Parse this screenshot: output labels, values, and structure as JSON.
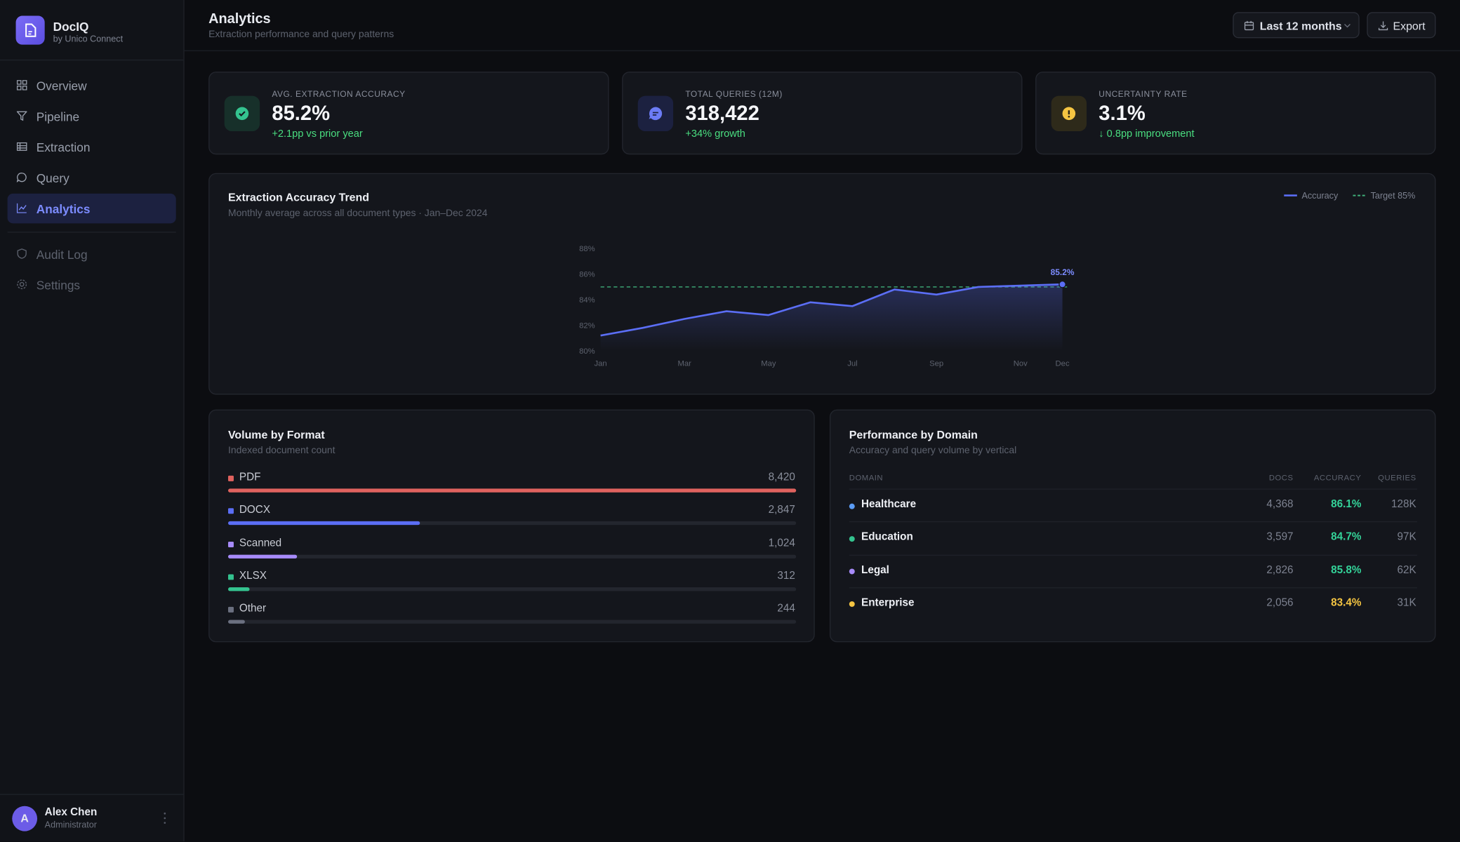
{
  "sidebar": {
    "brand": "DocIQ",
    "brand_sub": "by Unico Connect",
    "nav": [
      "Overview",
      "Pipeline",
      "Extraction",
      "Query",
      "Analytics"
    ],
    "nav_secondary": [
      "Audit Log",
      "Settings"
    ],
    "user": {
      "initial": "A",
      "name": "Alex Chen",
      "role": "Administrator"
    }
  },
  "header": {
    "title": "Analytics",
    "subtitle": "Extraction performance and query patterns",
    "range_button": "Last 12 months",
    "export_button": "Export"
  },
  "kpis": [
    {
      "label": "AVG. EXTRACTION ACCURACY",
      "value": "85.2%",
      "delta": "+2.1pp vs prior year",
      "color": "#34c38f"
    },
    {
      "label": "TOTAL QUERIES (12M)",
      "value": "318,422",
      "delta": "+34% growth",
      "color": "#6c7cf5"
    },
    {
      "label": "UNCERTAINTY RATE",
      "value": "3.1%",
      "delta": "↓ 0.8pp improvement",
      "color": "#f5c542"
    }
  ],
  "chart_data": {
    "type": "line",
    "title": "Extraction Accuracy Trend",
    "subtitle": "Monthly average across all document types · Jan–Dec 2024",
    "categories": [
      "Jan",
      null,
      "Mar",
      null,
      "May",
      null,
      "Jul",
      null,
      "Sep",
      null,
      "Nov",
      "Dec"
    ],
    "series": [
      {
        "name": "Accuracy",
        "color": "#5b6ef5",
        "values": [
          81.2,
          81.8,
          82.5,
          83.1,
          82.8,
          83.8,
          83.5,
          84.8,
          84.4,
          85.0,
          85.1,
          85.2
        ],
        "value_labels": [
          null,
          null,
          null,
          null,
          null,
          null,
          null,
          null,
          null,
          null,
          null,
          "85.2%"
        ]
      }
    ],
    "target": {
      "name": "Target 85%",
      "value": 85,
      "color": "#3fae7a"
    },
    "ylim": [
      80,
      88
    ],
    "yticks": [
      {
        "value": 80,
        "label": "80%"
      },
      {
        "value": 82,
        "label": "82%"
      },
      {
        "value": 84,
        "label": "84%"
      },
      {
        "value": 86,
        "label": "86%"
      },
      {
        "value": 88,
        "label": "88%"
      }
    ],
    "grid": false
  },
  "volume": {
    "title": "Volume by Format",
    "subtitle": "Indexed document count",
    "items": [
      {
        "name": "PDF",
        "color": "#e0625e",
        "value": 8420,
        "label": "8,420"
      },
      {
        "name": "DOCX",
        "color": "#5b6ef5",
        "value": 2847,
        "label": "2,847"
      },
      {
        "name": "Scanned",
        "color": "#a78bfa",
        "value": 1024,
        "label": "1,024"
      },
      {
        "name": "XLSX",
        "color": "#34c38f",
        "value": 312,
        "label": "312"
      },
      {
        "name": "Other",
        "color": "#6b7080",
        "value": 244,
        "label": "244"
      }
    ]
  },
  "domains": {
    "title": "Performance by Domain",
    "subtitle": "Accuracy and query volume by vertical",
    "columns": [
      "DOMAIN",
      "DOCS",
      "ACCURACY",
      "QUERIES"
    ],
    "rows": [
      {
        "color": "#5b9cf5",
        "accuracy_color": "#34d399",
        "cells": [
          "Healthcare",
          "4,368",
          "86.1%",
          "128K"
        ]
      },
      {
        "color": "#34c38f",
        "accuracy_color": "#34d399",
        "cells": [
          "Education",
          "3,597",
          "84.7%",
          "97K"
        ]
      },
      {
        "color": "#a78bfa",
        "accuracy_color": "#34d399",
        "cells": [
          "Legal",
          "2,826",
          "85.8%",
          "62K"
        ]
      },
      {
        "color": "#f5c542",
        "accuracy_color": "#f5c542",
        "cells": [
          "Enterprise",
          "2,056",
          "83.4%",
          "31K"
        ]
      }
    ]
  }
}
